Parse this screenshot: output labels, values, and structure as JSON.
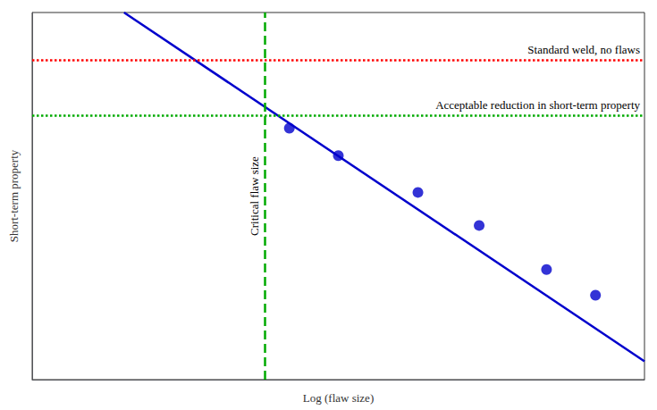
{
  "chart_data": {
    "type": "scatter",
    "xlabel": "Log (flaw size)",
    "ylabel": "Short-term property",
    "xlim": [
      0,
      10
    ],
    "ylim": [
      0,
      10
    ],
    "xticks": [],
    "yticks": [],
    "tick_labels": false,
    "grid": false,
    "series": [
      {
        "type": "line",
        "color": "#0000cc",
        "line_style": "solid",
        "x": [
          1.5,
          10.0
        ],
        "values": [
          10.0,
          0.5
        ]
      },
      {
        "type": "scatter",
        "color": "#0000cc",
        "marker": "circle",
        "x": [
          4.2,
          5.0,
          6.3,
          7.3,
          8.4,
          9.2
        ],
        "values": [
          6.85,
          6.1,
          5.1,
          4.2,
          3.0,
          2.3
        ]
      }
    ],
    "reference_lines": [
      {
        "axis": "y",
        "value": 8.7,
        "color": "#ff0000",
        "line_style": "dotted",
        "label": "Standard weld, no flaws"
      },
      {
        "axis": "y",
        "value": 7.2,
        "color": "#00aa00",
        "line_style": "dotted",
        "label": "Acceptable reduction in short-term property"
      },
      {
        "axis": "x",
        "value": 3.8,
        "color": "#00aa00",
        "line_style": "dashed",
        "label": "Critical flaw size"
      }
    ]
  }
}
